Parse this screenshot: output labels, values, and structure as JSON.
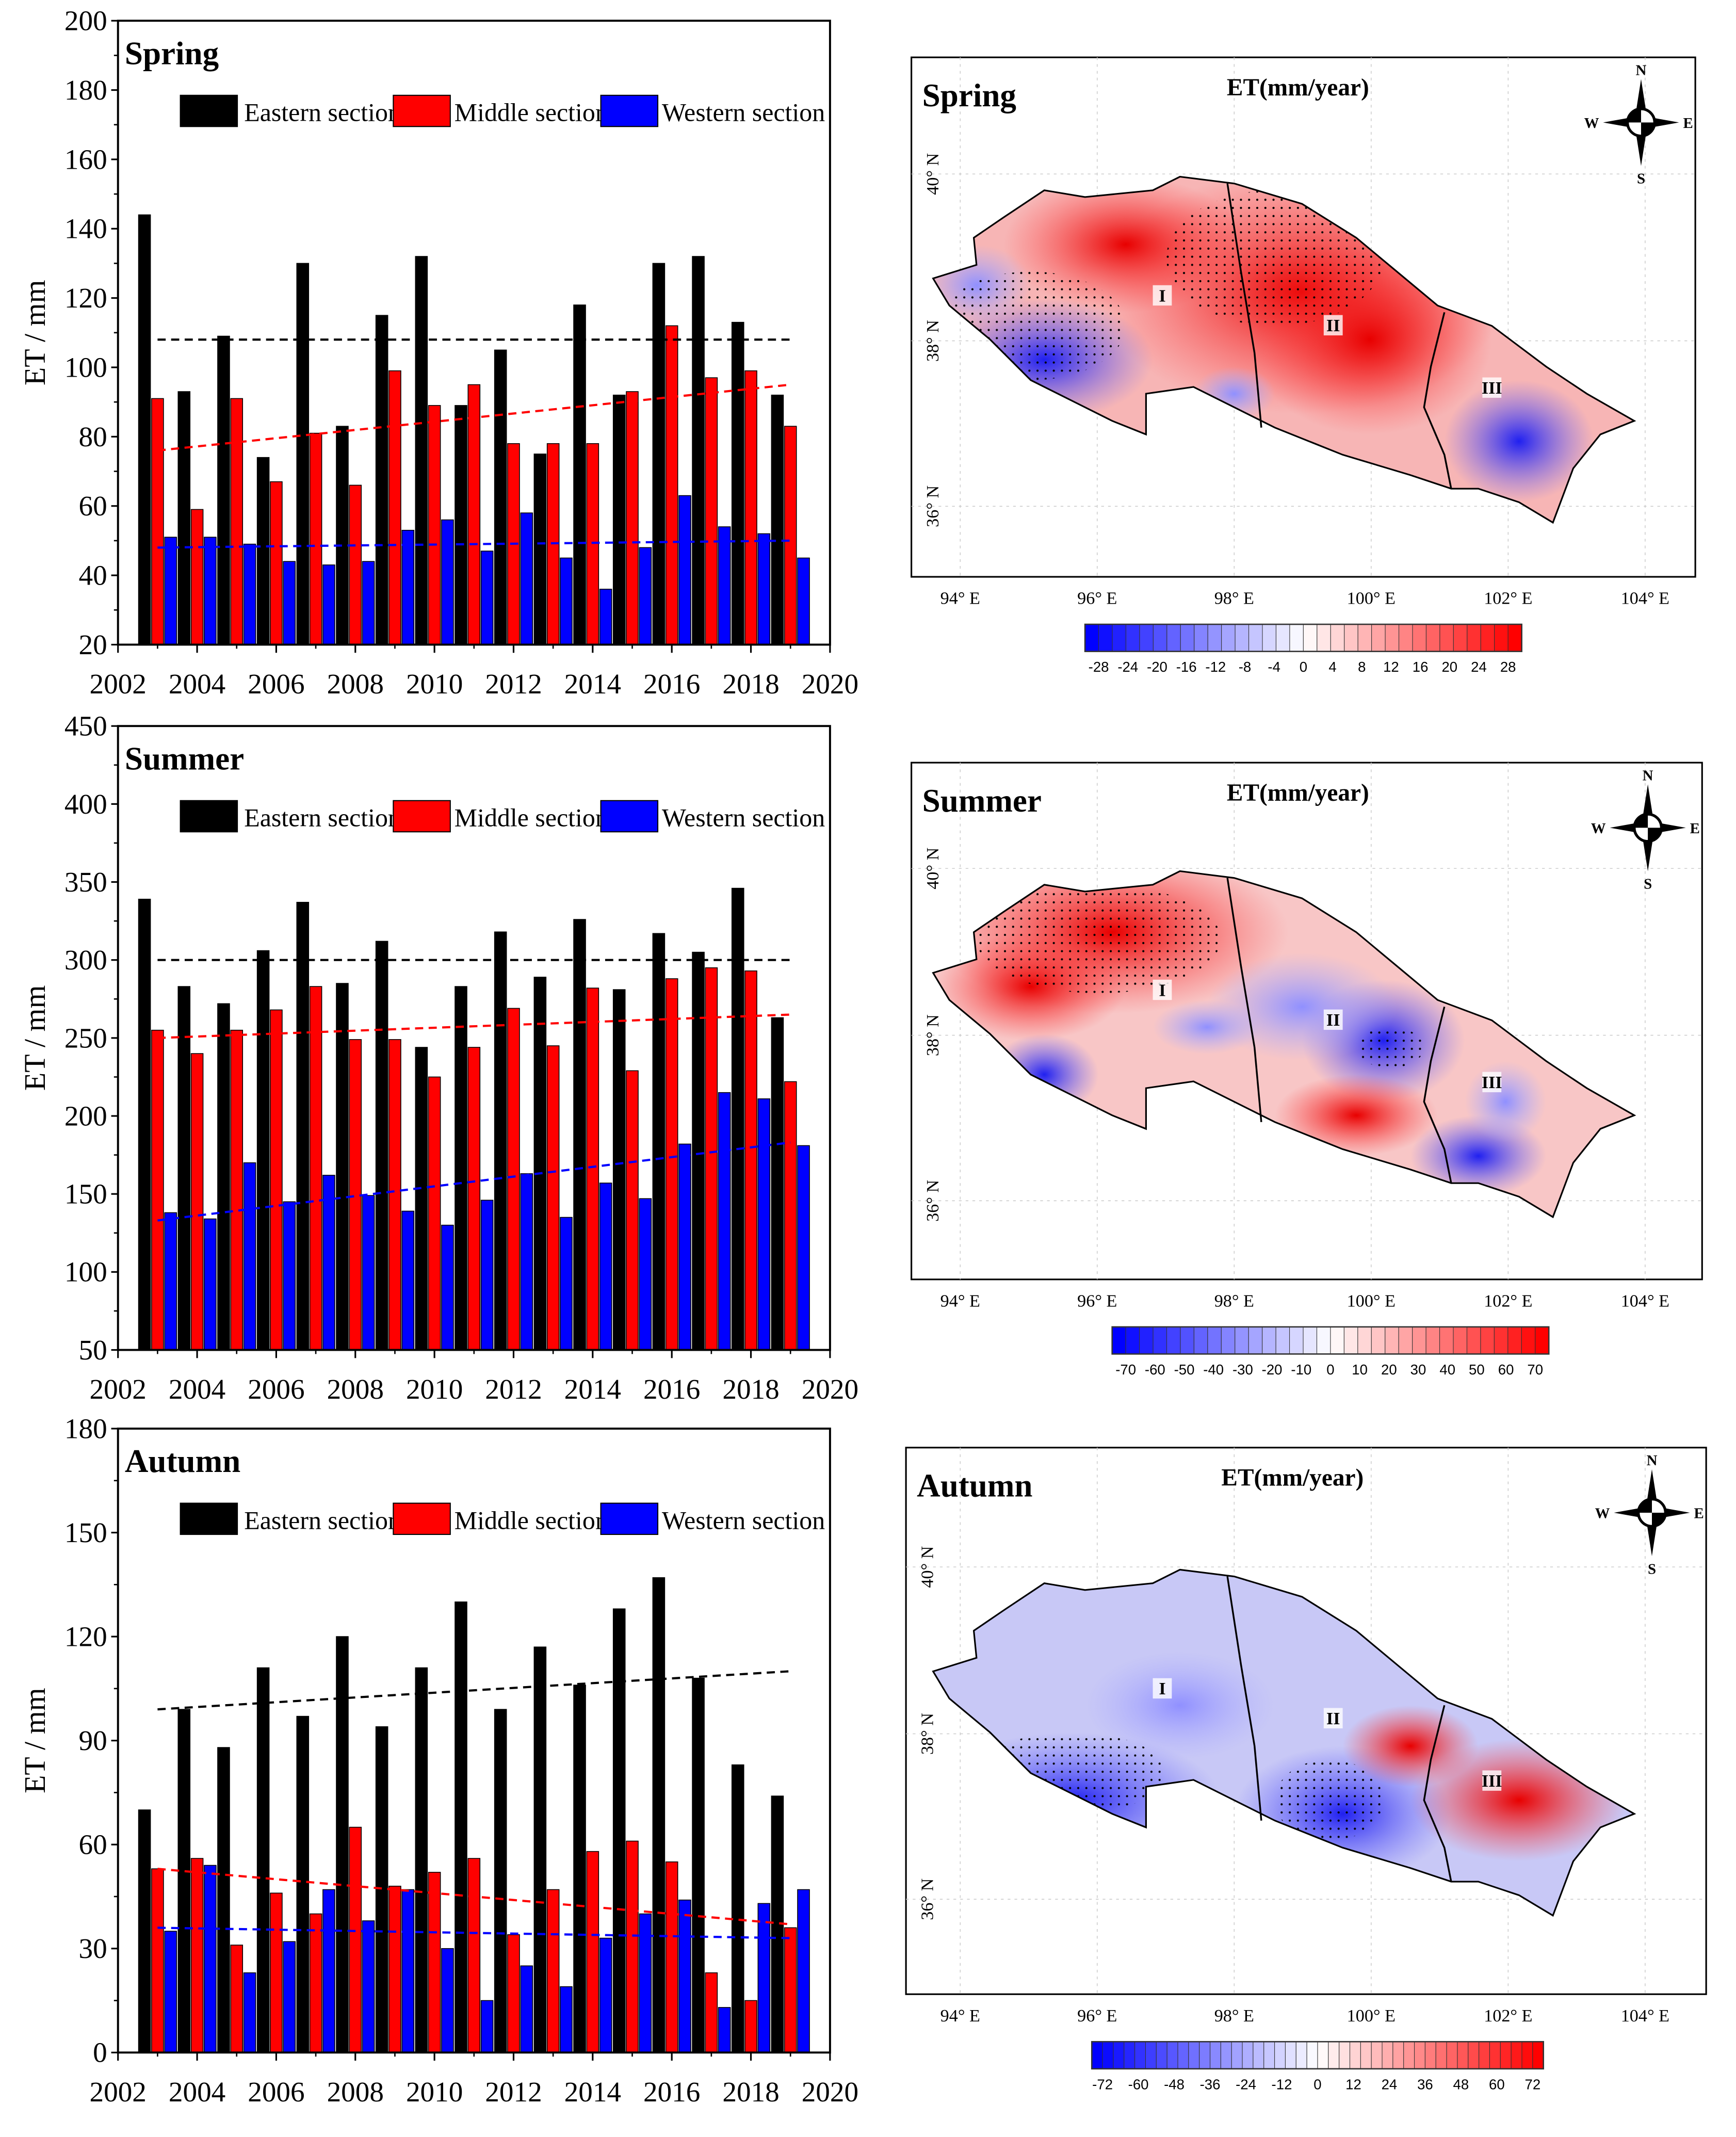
{
  "chart_data": [
    {
      "type": "bar",
      "title": "Spring",
      "xlabel": "",
      "ylabel": "ET / mm",
      "xlim": [
        2002,
        2020
      ],
      "ylim": [
        20,
        200
      ],
      "yticks": [
        20,
        40,
        60,
        80,
        100,
        120,
        140,
        160,
        180,
        200
      ],
      "xticks": [
        2002,
        2004,
        2006,
        2008,
        2010,
        2012,
        2014,
        2016,
        2018,
        2020
      ],
      "legend_position": "top",
      "categories": [
        2003,
        2004,
        2005,
        2006,
        2007,
        2008,
        2009,
        2010,
        2011,
        2012,
        2013,
        2014,
        2015,
        2016,
        2017,
        2018,
        2019
      ],
      "series": [
        {
          "name": "Eastern section",
          "color": "#000000",
          "values": [
            144,
            93,
            109,
            74,
            130,
            83,
            115,
            132,
            89,
            105,
            75,
            118,
            92,
            130,
            132,
            113,
            92
          ],
          "trend": [
            108,
            108
          ]
        },
        {
          "name": "Middle section",
          "color": "#ff0000",
          "values": [
            91,
            59,
            91,
            67,
            81,
            66,
            99,
            89,
            95,
            78,
            78,
            78,
            93,
            112,
            97,
            99,
            83
          ],
          "trend": [
            76,
            95
          ]
        },
        {
          "name": "Western section",
          "color": "#0000ff",
          "values": [
            51,
            51,
            49,
            44,
            43,
            44,
            53,
            56,
            47,
            58,
            45,
            36,
            48,
            63,
            54,
            52,
            45
          ],
          "trend": [
            48,
            50
          ]
        }
      ]
    },
    {
      "type": "bar",
      "title": "Summer",
      "xlabel": "",
      "ylabel": "ET / mm",
      "xlim": [
        2002,
        2020
      ],
      "ylim": [
        50,
        450
      ],
      "yticks": [
        50,
        100,
        150,
        200,
        250,
        300,
        350,
        400,
        450
      ],
      "xticks": [
        2002,
        2004,
        2006,
        2008,
        2010,
        2012,
        2014,
        2016,
        2018,
        2020
      ],
      "legend_position": "top",
      "categories": [
        2003,
        2004,
        2005,
        2006,
        2007,
        2008,
        2009,
        2010,
        2011,
        2012,
        2013,
        2014,
        2015,
        2016,
        2017,
        2018,
        2019
      ],
      "series": [
        {
          "name": "Eastern section",
          "color": "#000000",
          "values": [
            339,
            283,
            272,
            306,
            337,
            285,
            312,
            244,
            283,
            318,
            289,
            326,
            281,
            317,
            305,
            346,
            263
          ],
          "trend": [
            300,
            300
          ]
        },
        {
          "name": "Middle section",
          "color": "#ff0000",
          "values": [
            255,
            240,
            255,
            268,
            283,
            249,
            249,
            225,
            244,
            269,
            245,
            282,
            229,
            288,
            295,
            293,
            222
          ],
          "trend": [
            250,
            265
          ]
        },
        {
          "name": "Western section",
          "color": "#0000ff",
          "values": [
            138,
            134,
            170,
            145,
            162,
            149,
            139,
            130,
            146,
            163,
            135,
            157,
            147,
            182,
            215,
            211,
            181
          ],
          "trend": [
            133,
            183
          ]
        }
      ]
    },
    {
      "type": "bar",
      "title": "Autumn",
      "xlabel": "",
      "ylabel": "ET / mm",
      "xlim": [
        2002,
        2020
      ],
      "ylim": [
        0,
        180
      ],
      "yticks": [
        0,
        30,
        60,
        90,
        120,
        150,
        180
      ],
      "xticks": [
        2002,
        2004,
        2006,
        2008,
        2010,
        2012,
        2014,
        2016,
        2018,
        2020
      ],
      "legend_position": "top",
      "categories": [
        2003,
        2004,
        2005,
        2006,
        2007,
        2008,
        2009,
        2010,
        2011,
        2012,
        2013,
        2014,
        2015,
        2016,
        2017,
        2018,
        2019
      ],
      "series": [
        {
          "name": "Eastern section",
          "color": "#000000",
          "values": [
            70,
            99,
            88,
            111,
            97,
            120,
            94,
            111,
            130,
            99,
            117,
            106,
            128,
            137,
            108,
            83,
            74
          ],
          "trend": [
            99,
            110
          ]
        },
        {
          "name": "Middle section",
          "color": "#ff0000",
          "values": [
            53,
            56,
            31,
            46,
            40,
            65,
            48,
            52,
            56,
            34,
            47,
            58,
            61,
            55,
            23,
            15,
            36
          ],
          "trend": [
            53,
            37
          ]
        },
        {
          "name": "Western section",
          "color": "#0000ff",
          "values": [
            35,
            54,
            23,
            32,
            47,
            38,
            47,
            30,
            15,
            25,
            19,
            33,
            40,
            44,
            13,
            43,
            47
          ],
          "trend": [
            36,
            33
          ]
        }
      ]
    }
  ],
  "maps": [
    {
      "season": "Spring",
      "variable": "ET(mm/year)",
      "colorbar_ticks": [
        "-28",
        "-24",
        "-20",
        "-16",
        "-12",
        "-8",
        "-4",
        "0",
        "4",
        "8",
        "12",
        "16",
        "20",
        "24",
        "28"
      ]
    },
    {
      "season": "Summer",
      "variable": "ET(mm/year)",
      "colorbar_ticks": [
        "-70",
        "-60",
        "-50",
        "-40",
        "-30",
        "-20",
        "-10",
        "0",
        "10",
        "20",
        "30",
        "40",
        "50",
        "60",
        "70"
      ]
    },
    {
      "season": "Autumn",
      "variable": "ET(mm/year)",
      "colorbar_ticks": [
        "-72",
        "-60",
        "-48",
        "-36",
        "-24",
        "-12",
        "0",
        "12",
        "24",
        "36",
        "48",
        "60",
        "72"
      ]
    }
  ],
  "map_axes": {
    "lon_labels": [
      "94° E",
      "96° E",
      "98° E",
      "100° E",
      "102° E",
      "104° E"
    ],
    "lat_labels": [
      "36° N",
      "38° N",
      "40° N"
    ]
  },
  "region_labels": [
    "I",
    "II",
    "III"
  ],
  "compass": {
    "n": "N",
    "s": "S",
    "e": "E",
    "w": "W"
  },
  "colors": {
    "negative": "#0000ff",
    "neutral": "#ffffff",
    "positive": "#ff0000"
  }
}
